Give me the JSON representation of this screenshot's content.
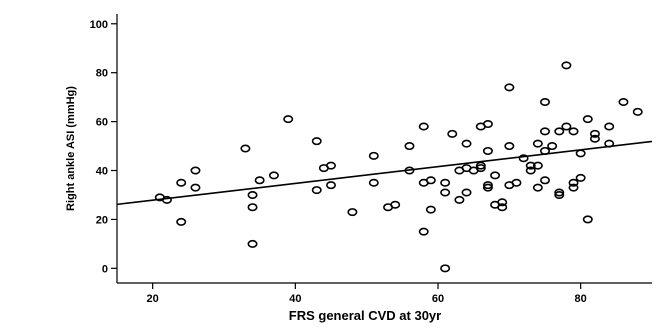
{
  "chart_data": {
    "type": "scatter",
    "title": "",
    "xlabel": "FRS general CVD at 30yr",
    "ylabel": "Right ankle ASI (mmHg)",
    "xlim": [
      15,
      90
    ],
    "ylim": [
      -6,
      104
    ],
    "xticks": [
      20,
      40,
      60,
      80
    ],
    "yticks": [
      0,
      20,
      40,
      60,
      80,
      100
    ],
    "grid": false,
    "legend": "none",
    "marker_color": "#000000",
    "fit_line": {
      "slope": 0.343,
      "intercept": 21.0
    },
    "points": [
      {
        "x": 21,
        "y": 29
      },
      {
        "x": 22,
        "y": 28
      },
      {
        "x": 24,
        "y": 35
      },
      {
        "x": 24,
        "y": 19
      },
      {
        "x": 26,
        "y": 40
      },
      {
        "x": 26,
        "y": 33
      },
      {
        "x": 33,
        "y": 49
      },
      {
        "x": 34,
        "y": 30
      },
      {
        "x": 34,
        "y": 25
      },
      {
        "x": 34,
        "y": 10
      },
      {
        "x": 35,
        "y": 36
      },
      {
        "x": 37,
        "y": 38
      },
      {
        "x": 39,
        "y": 61
      },
      {
        "x": 43,
        "y": 52
      },
      {
        "x": 43,
        "y": 32
      },
      {
        "x": 44,
        "y": 41
      },
      {
        "x": 45,
        "y": 42
      },
      {
        "x": 45,
        "y": 34
      },
      {
        "x": 48,
        "y": 23
      },
      {
        "x": 51,
        "y": 46
      },
      {
        "x": 51,
        "y": 35
      },
      {
        "x": 53,
        "y": 25
      },
      {
        "x": 54,
        "y": 26
      },
      {
        "x": 56,
        "y": 50
      },
      {
        "x": 56,
        "y": 40
      },
      {
        "x": 58,
        "y": 58
      },
      {
        "x": 58,
        "y": 35
      },
      {
        "x": 58,
        "y": 15
      },
      {
        "x": 59,
        "y": 36
      },
      {
        "x": 59,
        "y": 24
      },
      {
        "x": 61,
        "y": 35
      },
      {
        "x": 61,
        "y": 31
      },
      {
        "x": 61,
        "y": 0
      },
      {
        "x": 62,
        "y": 55
      },
      {
        "x": 63,
        "y": 40
      },
      {
        "x": 63,
        "y": 28
      },
      {
        "x": 64,
        "y": 51
      },
      {
        "x": 64,
        "y": 41
      },
      {
        "x": 64,
        "y": 31
      },
      {
        "x": 65,
        "y": 40
      },
      {
        "x": 66,
        "y": 58
      },
      {
        "x": 66,
        "y": 42
      },
      {
        "x": 66,
        "y": 41
      },
      {
        "x": 67,
        "y": 59
      },
      {
        "x": 67,
        "y": 48
      },
      {
        "x": 67,
        "y": 34
      },
      {
        "x": 67,
        "y": 33
      },
      {
        "x": 68,
        "y": 38
      },
      {
        "x": 68,
        "y": 26
      },
      {
        "x": 69,
        "y": 27
      },
      {
        "x": 69,
        "y": 25
      },
      {
        "x": 70,
        "y": 74
      },
      {
        "x": 70,
        "y": 50
      },
      {
        "x": 70,
        "y": 34
      },
      {
        "x": 71,
        "y": 35
      },
      {
        "x": 72,
        "y": 45
      },
      {
        "x": 73,
        "y": 42
      },
      {
        "x": 73,
        "y": 40
      },
      {
        "x": 74,
        "y": 51
      },
      {
        "x": 74,
        "y": 42
      },
      {
        "x": 74,
        "y": 33
      },
      {
        "x": 75,
        "y": 68
      },
      {
        "x": 75,
        "y": 56
      },
      {
        "x": 75,
        "y": 48
      },
      {
        "x": 75,
        "y": 36
      },
      {
        "x": 76,
        "y": 50
      },
      {
        "x": 77,
        "y": 56
      },
      {
        "x": 77,
        "y": 31
      },
      {
        "x": 77,
        "y": 30
      },
      {
        "x": 78,
        "y": 83
      },
      {
        "x": 78,
        "y": 58
      },
      {
        "x": 79,
        "y": 56
      },
      {
        "x": 79,
        "y": 33
      },
      {
        "x": 79,
        "y": 35
      },
      {
        "x": 80,
        "y": 47
      },
      {
        "x": 80,
        "y": 37
      },
      {
        "x": 81,
        "y": 61
      },
      {
        "x": 81,
        "y": 20
      },
      {
        "x": 82,
        "y": 55
      },
      {
        "x": 82,
        "y": 53
      },
      {
        "x": 84,
        "y": 58
      },
      {
        "x": 84,
        "y": 51
      },
      {
        "x": 86,
        "y": 68
      },
      {
        "x": 88,
        "y": 64
      }
    ]
  }
}
